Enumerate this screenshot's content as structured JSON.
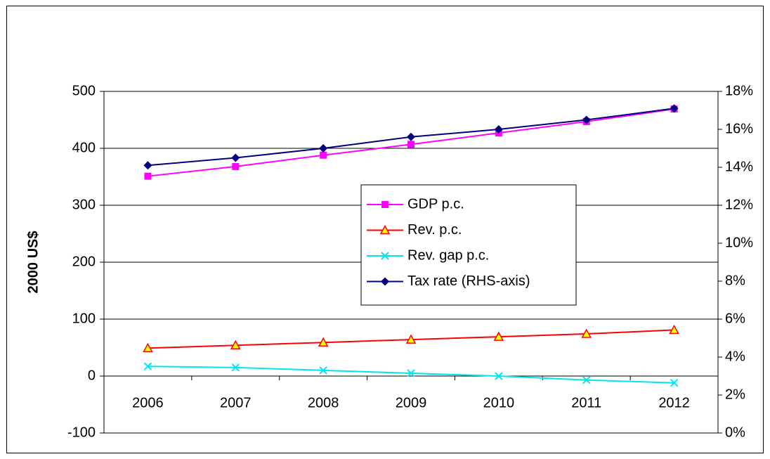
{
  "chart_data": {
    "type": "line",
    "y_label": "2000 US$",
    "categories": [
      "2006",
      "2007",
      "2008",
      "2009",
      "2010",
      "2011",
      "2012"
    ],
    "series": [
      {
        "name": "GDP p.c.",
        "color": "#ff00ff",
        "marker": "square",
        "values": [
          351,
          368,
          388,
          407,
          427,
          447,
          469
        ]
      },
      {
        "name": "Rev. p.c.",
        "color": "#ff0000",
        "marker": "triangle",
        "values": [
          49,
          54,
          59,
          64,
          69,
          74,
          81
        ]
      },
      {
        "name": "Rev. gap p.c.",
        "color": "#00e5ee",
        "marker": "x",
        "values": [
          17,
          15,
          10,
          5,
          0,
          -7,
          -12
        ]
      },
      {
        "name": "Tax rate (RHS-axis)",
        "color": "#000080",
        "marker": "diamond",
        "axis": "y2",
        "values": [
          14.1,
          14.5,
          15.0,
          15.6,
          16.0,
          16.5,
          17.1
        ]
      }
    ],
    "ylim": [
      -100,
      500
    ],
    "yticks": [
      -100,
      0,
      100,
      200,
      300,
      400,
      500
    ],
    "y2lim": [
      0,
      18
    ],
    "y2ticks": [
      {
        "value": 0,
        "label": "0%"
      },
      {
        "value": 2,
        "label": "2%"
      },
      {
        "value": 4,
        "label": "4%"
      },
      {
        "value": 6,
        "label": "6%"
      },
      {
        "value": 8,
        "label": "8%"
      },
      {
        "value": 10,
        "label": "10%"
      },
      {
        "value": 12,
        "label": "12%"
      },
      {
        "value": 14,
        "label": "14%"
      },
      {
        "value": 16,
        "label": "16%"
      },
      {
        "value": 18,
        "label": "18%"
      }
    ],
    "grid": true
  }
}
